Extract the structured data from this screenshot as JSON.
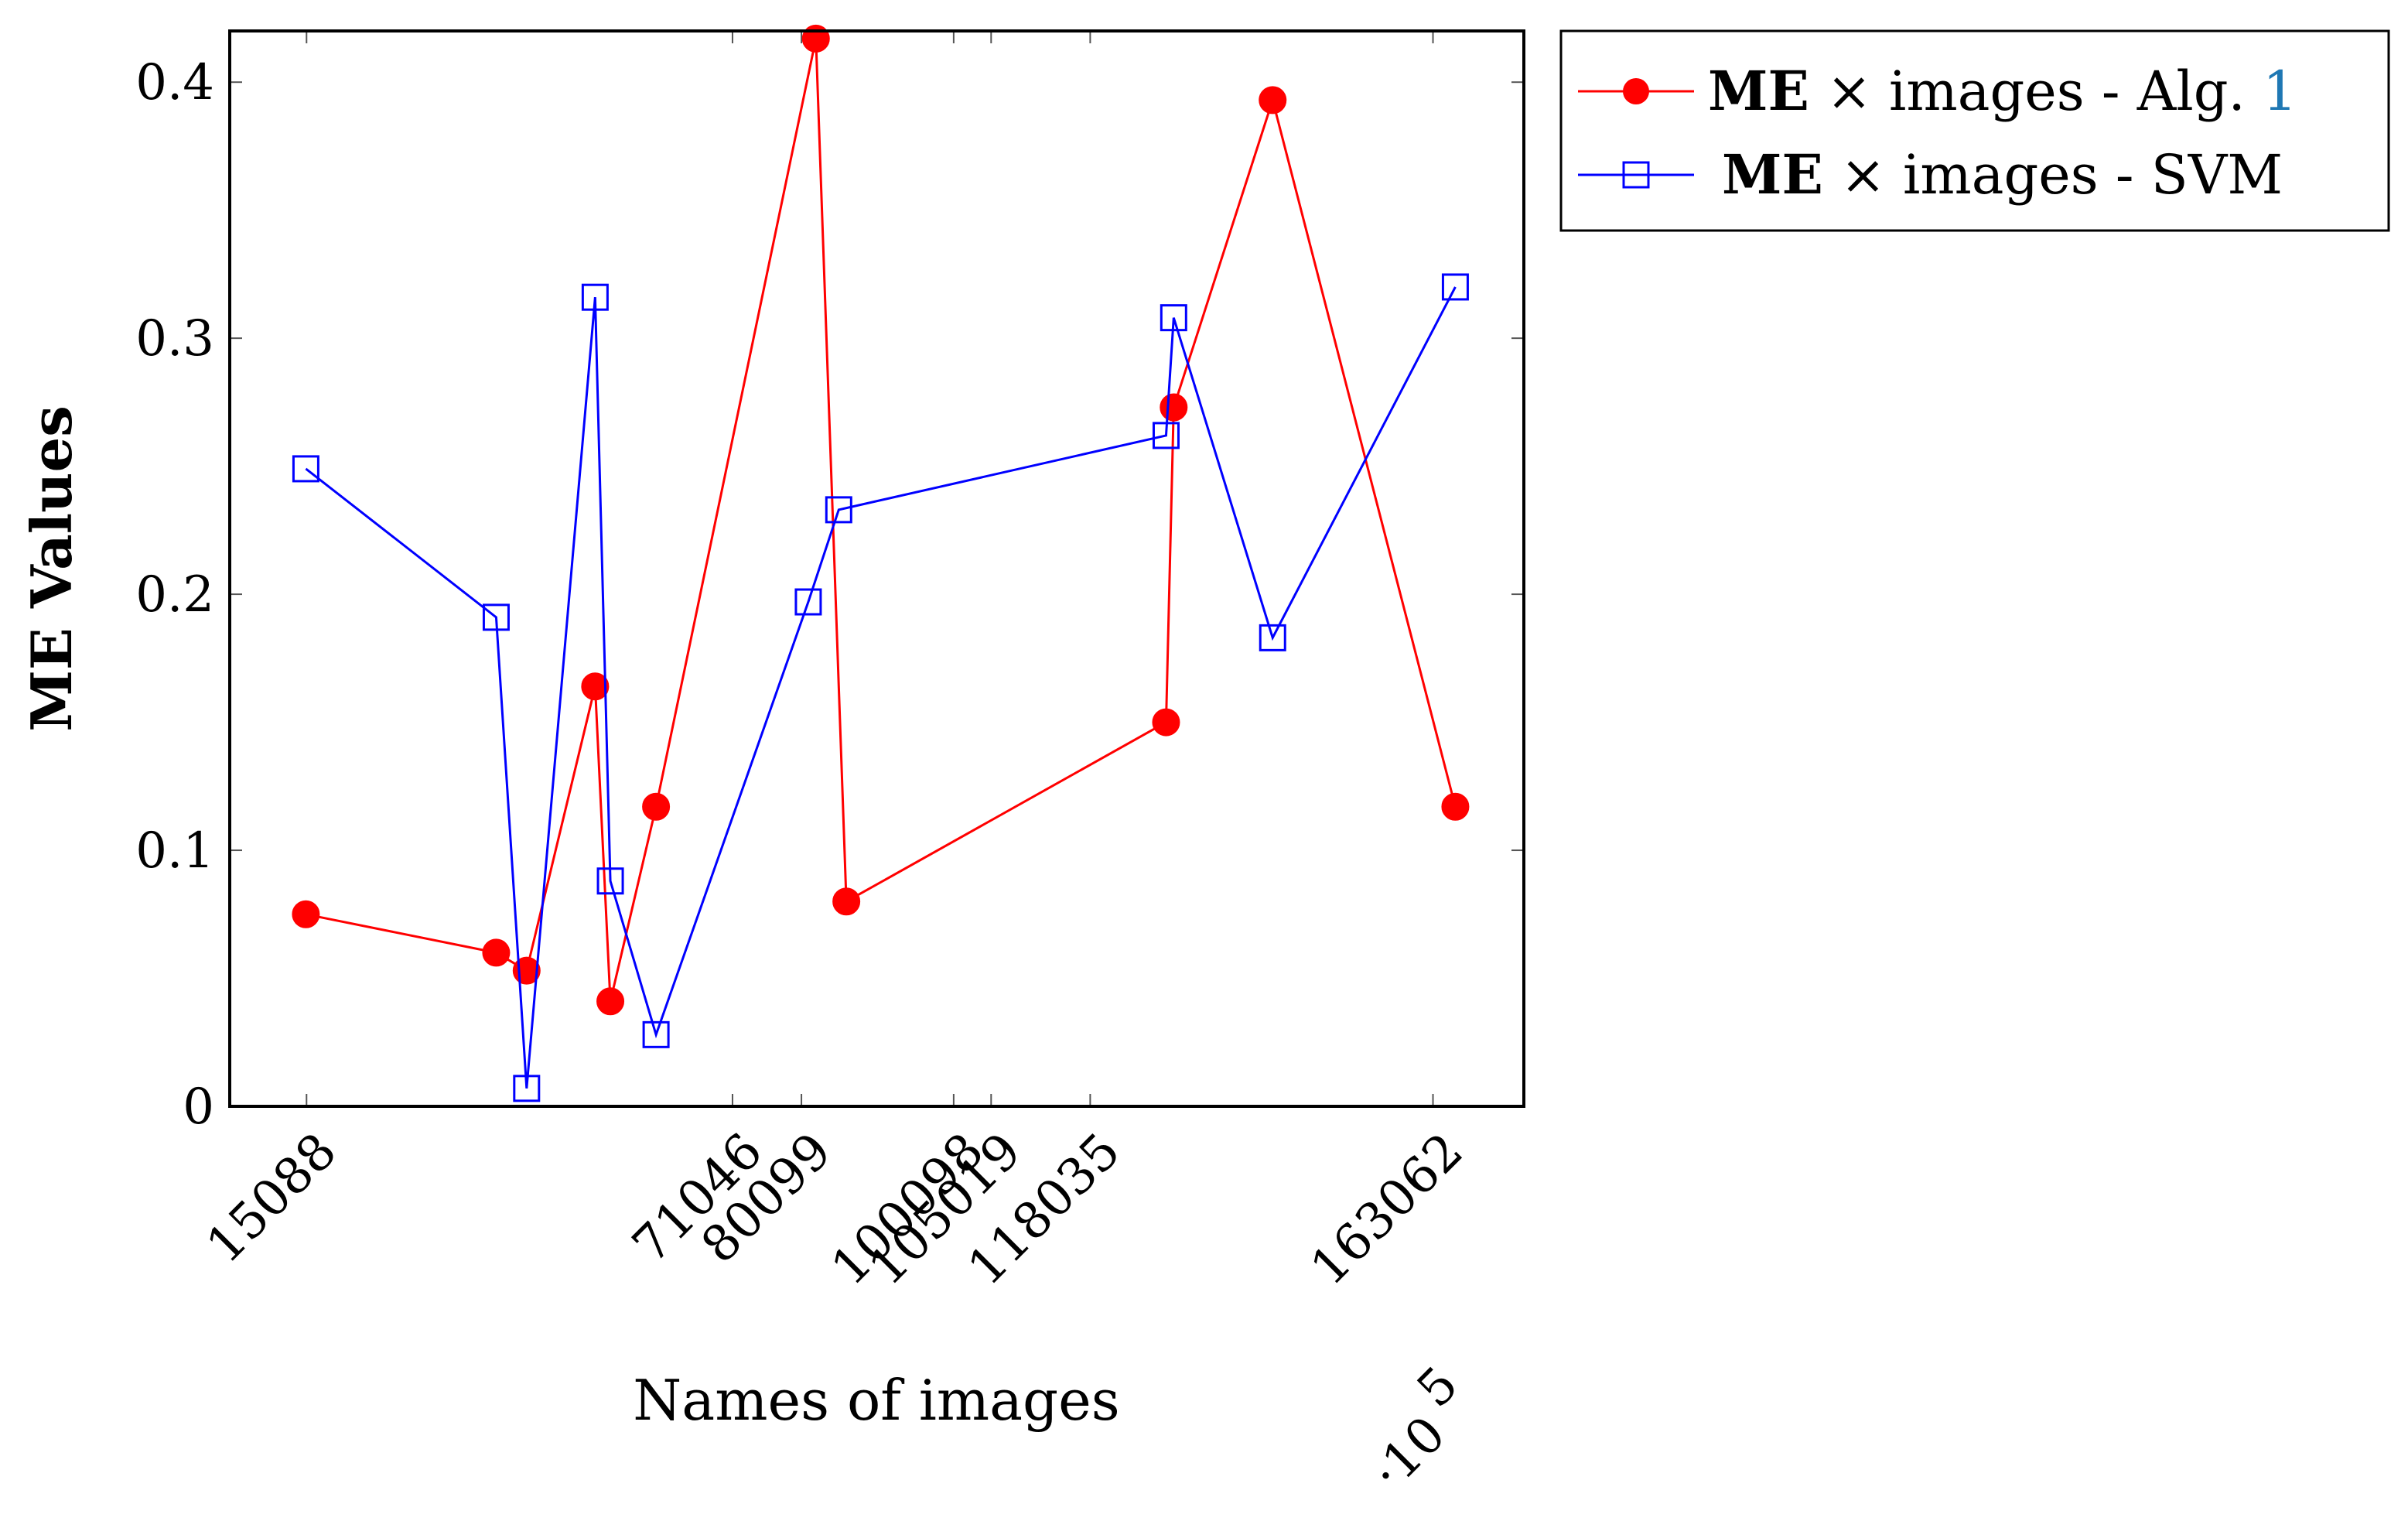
{
  "chart_data": {
    "type": "line",
    "xlabel": "Names of images",
    "ylabel": "ME Values",
    "x_multiplier_label": "·10",
    "x_multiplier_exponent": "5",
    "xlim": [
      0.05,
      1.75
    ],
    "ylim": [
      0,
      0.42
    ],
    "x_ticks": [
      {
        "value": 0.15088,
        "label": "15088"
      },
      {
        "value": 0.71046,
        "label": "71046"
      },
      {
        "value": 0.80099,
        "label": "80099"
      },
      {
        "value": 1.00098,
        "label": "100098"
      },
      {
        "value": 1.05019,
        "label": "105019"
      },
      {
        "value": 1.18035,
        "label": "118035"
      },
      {
        "value": 1.63062,
        "label": "163062"
      }
    ],
    "y_ticks": [
      {
        "value": 0,
        "label": "0"
      },
      {
        "value": 0.1,
        "label": "0.1"
      },
      {
        "value": 0.2,
        "label": "0.2"
      },
      {
        "value": 0.3,
        "label": "0.3"
      },
      {
        "value": 0.4,
        "label": "0.4"
      }
    ],
    "series": [
      {
        "name_bold": "ME",
        "name_rest": " × images - Alg. ",
        "name_ref": "1",
        "color": "#ff0000",
        "ref_color": "#1f78b4",
        "marker": "filled-circle",
        "x": [
          0.15,
          0.4,
          0.44,
          0.53,
          0.55,
          0.61,
          0.82,
          0.86,
          1.28,
          1.29,
          1.42,
          1.66
        ],
        "y": [
          0.075,
          0.06,
          0.053,
          0.164,
          0.041,
          0.117,
          0.417,
          0.08,
          0.15,
          0.273,
          0.393,
          0.117
        ]
      },
      {
        "name_bold": "ME",
        "name_rest": " × images - SVM",
        "color": "#0000ff",
        "marker": "open-square",
        "x": [
          0.15,
          0.4,
          0.44,
          0.53,
          0.55,
          0.61,
          0.81,
          0.85,
          1.28,
          1.29,
          1.42,
          1.66
        ],
        "y": [
          0.249,
          0.191,
          0.007,
          0.316,
          0.088,
          0.028,
          0.197,
          0.233,
          0.262,
          0.308,
          0.183,
          0.32
        ]
      }
    ]
  }
}
